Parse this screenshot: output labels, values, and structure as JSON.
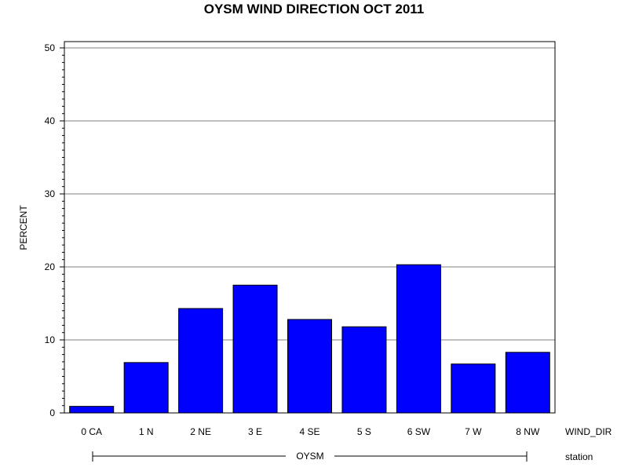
{
  "chart_data": {
    "type": "bar",
    "title": "OYSM WIND DIRECTION OCT 2011",
    "xlabel": "WIND_DIR",
    "ylabel": "PERCENT",
    "group_label": "station",
    "group_name": "OYSM",
    "categories": [
      "0 CA",
      "1 N",
      "2 NE",
      "3 E",
      "4 SE",
      "5 S",
      "6 SW",
      "7 W",
      "8 NW"
    ],
    "values": [
      0.9,
      6.9,
      14.3,
      17.5,
      12.8,
      11.8,
      20.3,
      6.7,
      8.3
    ],
    "ylim": [
      0,
      50
    ],
    "yticks": [
      0,
      10,
      20,
      30,
      40,
      50
    ],
    "grid": true,
    "bar_color": "#0000ff"
  }
}
